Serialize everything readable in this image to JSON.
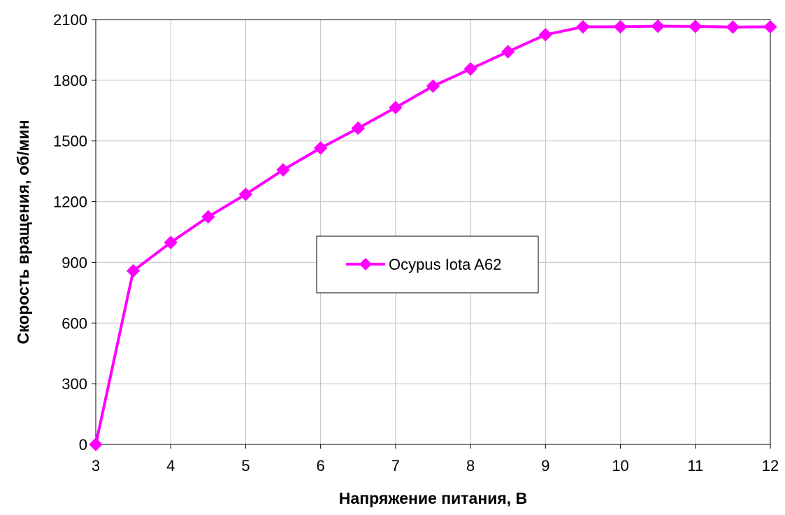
{
  "chart_data": {
    "type": "line",
    "title": "",
    "xlabel": "Напряжение питания, В",
    "ylabel": "Скорость вращения, об/мин",
    "xlim": [
      3,
      12
    ],
    "ylim": [
      0,
      2100
    ],
    "xticks": [
      3,
      4,
      5,
      6,
      7,
      8,
      9,
      10,
      11,
      12
    ],
    "yticks": [
      0,
      300,
      600,
      900,
      1200,
      1500,
      1800,
      2100
    ],
    "grid": true,
    "legend_position": "center",
    "series": [
      {
        "name": "Ocypus Iota A62",
        "color": "#ff00ff",
        "marker": "diamond",
        "x": [
          3,
          3.5,
          4,
          4.5,
          5,
          5.5,
          6,
          6.5,
          7,
          7.5,
          8,
          8.5,
          9,
          9.5,
          10,
          10.5,
          11,
          11.5,
          12
        ],
        "y": [
          0,
          858,
          998,
          1125,
          1236,
          1357,
          1465,
          1563,
          1665,
          1771,
          1856,
          1941,
          2025,
          2064,
          2064,
          2067,
          2066,
          2063,
          2064
        ]
      }
    ]
  }
}
